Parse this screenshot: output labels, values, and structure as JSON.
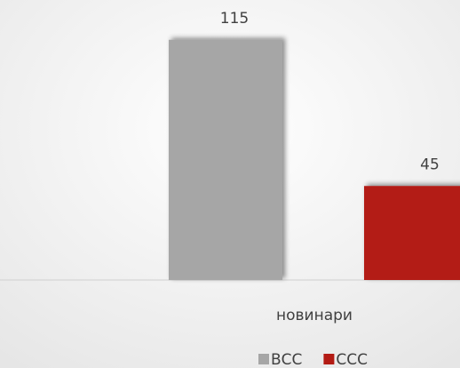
{
  "chart_data": {
    "type": "bar",
    "categories": [
      "новинари"
    ],
    "series": [
      {
        "name": "ВСС",
        "color": "#a6a6a6",
        "values": [
          115
        ]
      },
      {
        "name": "ССС",
        "color": "#b31b14",
        "values": [
          45
        ]
      }
    ],
    "ylim": [
      0,
      130
    ],
    "legend": "bottom"
  }
}
